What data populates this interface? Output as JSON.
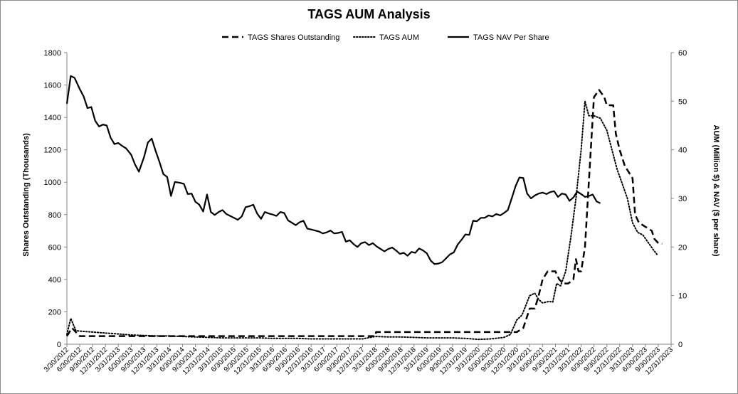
{
  "chart_data": {
    "type": "line",
    "title": "TAGS AUM Analysis",
    "ylabel": "Shares Outstanding (Thousands)",
    "y2label": "AUM (Million $) & NAV ($ per share)",
    "ylim": [
      0,
      1800
    ],
    "y2lim": [
      0,
      60
    ],
    "yticks": [
      0,
      200,
      400,
      600,
      800,
      1000,
      1200,
      1400,
      1600,
      1800
    ],
    "y2ticks": [
      0,
      10,
      20,
      30,
      40,
      50,
      60
    ],
    "grid": false,
    "legend_position": "top",
    "xticks": [
      "3/30/2012",
      "6/30/2012",
      "9/30/2012",
      "12/31/2012",
      "3/31/2013",
      "6/30/2013",
      "9/30/2013",
      "12/31/2013",
      "3/31/2014",
      "6/30/2014",
      "9/30/2014",
      "12/31/2014",
      "3/31/2015",
      "6/30/2015",
      "9/30/2015",
      "12/31/2015",
      "3/31/2016",
      "6/30/2016",
      "9/30/2016",
      "12/31/2016",
      "3/31/2017",
      "6/30/2017",
      "9/30/2017",
      "12/31/2017",
      "3/31/2018",
      "6/30/2018",
      "9/30/2018",
      "12/31/2018",
      "3/31/2019",
      "6/30/2019",
      "9/30/2019",
      "12/31/2019",
      "3/31/2020",
      "6/30/2020",
      "9/30/2020",
      "12/31/2020",
      "3/31/2021",
      "6/30/2021",
      "9/30/2021",
      "12/31/2021",
      "3/31/2022",
      "6/30/2022",
      "9/30/2022",
      "12/31/2022",
      "3/31/2023",
      "6/30/2023",
      "9/30/2023",
      "12/31/2023"
    ],
    "series": [
      {
        "name": "TAGS Shares Outstanding",
        "axis": "left",
        "style": "dashed",
        "points": [
          [
            0,
            50
          ],
          [
            0.4,
            100
          ],
          [
            0.7,
            75
          ],
          [
            1,
            50
          ],
          [
            2,
            50
          ],
          [
            3,
            50
          ],
          [
            4,
            50
          ],
          [
            5,
            50
          ],
          [
            6,
            50
          ],
          [
            7,
            50
          ],
          [
            8,
            50
          ],
          [
            9,
            50
          ],
          [
            10,
            50
          ],
          [
            11,
            50
          ],
          [
            12,
            50
          ],
          [
            13,
            50
          ],
          [
            14,
            50
          ],
          [
            15,
            50
          ],
          [
            16,
            50
          ],
          [
            17,
            50
          ],
          [
            18,
            50
          ],
          [
            19,
            50
          ],
          [
            20,
            50
          ],
          [
            21,
            50
          ],
          [
            22,
            50
          ],
          [
            23,
            50
          ],
          [
            24,
            50
          ],
          [
            24.05,
            75
          ],
          [
            25,
            75
          ],
          [
            26,
            75
          ],
          [
            27,
            75
          ],
          [
            28,
            75
          ],
          [
            29,
            75
          ],
          [
            30,
            75
          ],
          [
            31,
            75
          ],
          [
            32,
            75
          ],
          [
            33,
            75
          ],
          [
            34,
            75
          ],
          [
            35,
            75
          ],
          [
            35.5,
            100
          ],
          [
            36,
            220
          ],
          [
            36.4,
            220
          ],
          [
            36.7,
            300
          ],
          [
            37,
            400
          ],
          [
            37.4,
            450
          ],
          [
            38,
            450
          ],
          [
            38.3,
            400
          ],
          [
            38.6,
            375
          ],
          [
            39,
            375
          ],
          [
            39.4,
            400
          ],
          [
            39.6,
            525
          ],
          [
            39.8,
            450
          ],
          [
            40,
            450
          ],
          [
            40.3,
            600
          ],
          [
            40.6,
            1000
          ],
          [
            41,
            1525
          ],
          [
            41.4,
            1570
          ],
          [
            41.8,
            1525
          ],
          [
            42,
            1475
          ],
          [
            42.5,
            1475
          ],
          [
            42.7,
            1300
          ],
          [
            43,
            1200
          ],
          [
            43.4,
            1100
          ],
          [
            43.6,
            1075
          ],
          [
            44,
            1025
          ],
          [
            44.2,
            800
          ],
          [
            44.5,
            750
          ],
          [
            45,
            725
          ],
          [
            45.5,
            700
          ],
          [
            45.7,
            650
          ],
          [
            46,
            625
          ],
          [
            46.3,
            620
          ]
        ]
      },
      {
        "name": "TAGS AUM",
        "axis": "right",
        "style": "dotted",
        "points": [
          [
            0,
            2
          ],
          [
            0.3,
            5.3
          ],
          [
            0.7,
            2.8
          ],
          [
            1,
            2.7
          ],
          [
            2,
            2.5
          ],
          [
            3,
            2.3
          ],
          [
            4,
            2.1
          ],
          [
            5,
            1.9
          ],
          [
            6,
            1.8
          ],
          [
            7,
            1.7
          ],
          [
            8,
            1.7
          ],
          [
            9,
            1.6
          ],
          [
            10,
            1.5
          ],
          [
            11,
            1.4
          ],
          [
            12,
            1.3
          ],
          [
            13,
            1.3
          ],
          [
            14,
            1.3
          ],
          [
            15,
            1.3
          ],
          [
            16,
            1.2
          ],
          [
            17,
            1.2
          ],
          [
            18,
            1.2
          ],
          [
            19,
            1.1
          ],
          [
            20,
            1.1
          ],
          [
            21,
            1.1
          ],
          [
            22,
            1.1
          ],
          [
            23,
            1.1
          ],
          [
            24,
            1.6
          ],
          [
            25,
            1.5
          ],
          [
            26,
            1.5
          ],
          [
            27,
            1.4
          ],
          [
            28,
            1.3
          ],
          [
            29,
            1.3
          ],
          [
            30,
            1.3
          ],
          [
            31,
            1.2
          ],
          [
            32,
            1.0
          ],
          [
            33,
            1.1
          ],
          [
            34,
            1.4
          ],
          [
            34.5,
            2.0
          ],
          [
            35,
            5
          ],
          [
            35.4,
            6
          ],
          [
            36,
            10
          ],
          [
            36.4,
            10.5
          ],
          [
            36.7,
            9.2
          ],
          [
            37,
            8.5
          ],
          [
            37.5,
            8.8
          ],
          [
            37.8,
            8.7
          ],
          [
            38.1,
            12.5
          ],
          [
            38.4,
            12
          ],
          [
            38.8,
            15
          ],
          [
            39.2,
            22
          ],
          [
            39.6,
            30
          ],
          [
            40,
            40
          ],
          [
            40.3,
            50
          ],
          [
            40.6,
            47
          ],
          [
            41,
            47
          ],
          [
            41.5,
            46.5
          ],
          [
            42,
            44
          ],
          [
            42.4,
            40
          ],
          [
            42.8,
            36
          ],
          [
            43.2,
            33
          ],
          [
            43.6,
            30
          ],
          [
            44,
            25
          ],
          [
            44.4,
            23
          ],
          [
            44.8,
            22.5
          ],
          [
            45.2,
            21
          ],
          [
            45.6,
            19.5
          ],
          [
            45.9,
            18.5
          ]
        ]
      },
      {
        "name": "TAGS NAV Per Share",
        "axis": "right",
        "style": "solid",
        "points": [
          [
            0,
            49.5
          ],
          [
            0.3,
            55.2
          ],
          [
            0.6,
            54.8
          ],
          [
            1,
            52.5
          ],
          [
            1.3,
            51
          ],
          [
            1.6,
            48.6
          ],
          [
            1.9,
            48.8
          ],
          [
            2.2,
            46
          ],
          [
            2.5,
            44.8
          ],
          [
            2.8,
            45.2
          ],
          [
            3.1,
            45
          ],
          [
            3.4,
            42.5
          ],
          [
            3.7,
            41.2
          ],
          [
            4,
            41.4
          ],
          [
            4.3,
            40.8
          ],
          [
            4.6,
            40.3
          ],
          [
            5,
            39
          ],
          [
            5.3,
            37
          ],
          [
            5.6,
            35.5
          ],
          [
            6,
            38.5
          ],
          [
            6.3,
            41.5
          ],
          [
            6.6,
            42.3
          ],
          [
            6.9,
            39.8
          ],
          [
            7.2,
            37.5
          ],
          [
            7.5,
            35
          ],
          [
            7.8,
            34.4
          ],
          [
            8.1,
            30.5
          ],
          [
            8.4,
            33.4
          ],
          [
            8.8,
            33.2
          ],
          [
            9.1,
            33
          ],
          [
            9.4,
            30.9
          ],
          [
            9.7,
            31
          ],
          [
            10,
            29.3
          ],
          [
            10.3,
            28.7
          ],
          [
            10.6,
            27.3
          ],
          [
            10.9,
            30.8
          ],
          [
            11.2,
            27.2
          ],
          [
            11.5,
            26.6
          ],
          [
            11.8,
            27.2
          ],
          [
            12.1,
            27.6
          ],
          [
            12.4,
            26.8
          ],
          [
            12.7,
            26.4
          ],
          [
            13,
            26
          ],
          [
            13.3,
            25.6
          ],
          [
            13.6,
            26.3
          ],
          [
            13.9,
            28.2
          ],
          [
            14.2,
            28.4
          ],
          [
            14.5,
            28.7
          ],
          [
            14.8,
            26.9
          ],
          [
            15.1,
            25.8
          ],
          [
            15.4,
            27.2
          ],
          [
            15.7,
            26.9
          ],
          [
            16,
            26.7
          ],
          [
            16.3,
            26.4
          ],
          [
            16.6,
            27.2
          ],
          [
            16.9,
            27
          ],
          [
            17.2,
            25.5
          ],
          [
            17.5,
            25
          ],
          [
            17.8,
            24.5
          ],
          [
            18.1,
            25.1
          ],
          [
            18.4,
            25.4
          ],
          [
            18.7,
            23.8
          ],
          [
            19,
            23.6
          ],
          [
            19.3,
            23.4
          ],
          [
            19.6,
            23.2
          ],
          [
            19.9,
            22.8
          ],
          [
            20.2,
            23
          ],
          [
            20.5,
            23.4
          ],
          [
            20.8,
            22.8
          ],
          [
            21.1,
            22.9
          ],
          [
            21.4,
            23.1
          ],
          [
            21.7,
            21.1
          ],
          [
            22,
            21.4
          ],
          [
            22.3,
            20.6
          ],
          [
            22.6,
            20
          ],
          [
            22.9,
            20.8
          ],
          [
            23.2,
            21
          ],
          [
            23.5,
            20.4
          ],
          [
            23.8,
            20.8
          ],
          [
            24.1,
            20.1
          ],
          [
            24.4,
            19.6
          ],
          [
            24.7,
            19.1
          ],
          [
            25,
            19.6
          ],
          [
            25.3,
            19.9
          ],
          [
            25.6,
            19.3
          ],
          [
            25.9,
            18.6
          ],
          [
            26.2,
            18.8
          ],
          [
            26.5,
            18.2
          ],
          [
            26.8,
            19
          ],
          [
            27.1,
            18.8
          ],
          [
            27.4,
            19.7
          ],
          [
            27.7,
            19.3
          ],
          [
            28,
            18.7
          ],
          [
            28.3,
            17.2
          ],
          [
            28.6,
            16.5
          ],
          [
            28.9,
            16.6
          ],
          [
            29.2,
            16.9
          ],
          [
            29.5,
            17.7
          ],
          [
            29.8,
            18.5
          ],
          [
            30.1,
            18.9
          ],
          [
            30.4,
            20.5
          ],
          [
            30.7,
            21.5
          ],
          [
            31,
            22.6
          ],
          [
            31.3,
            22.5
          ],
          [
            31.6,
            25.4
          ],
          [
            31.9,
            25.3
          ],
          [
            32.2,
            26
          ],
          [
            32.5,
            26
          ],
          [
            32.8,
            26.5
          ],
          [
            33.1,
            26.3
          ],
          [
            33.4,
            26.8
          ],
          [
            33.7,
            26.5
          ],
          [
            34,
            27
          ],
          [
            34.3,
            27.6
          ],
          [
            34.6,
            30
          ],
          [
            34.9,
            32.5
          ],
          [
            35.2,
            34.3
          ],
          [
            35.5,
            34.2
          ],
          [
            35.8,
            31
          ],
          [
            36.1,
            30
          ],
          [
            36.4,
            30.6
          ],
          [
            36.7,
            31
          ],
          [
            37,
            31.2
          ],
          [
            37.3,
            30.9
          ],
          [
            37.6,
            31.3
          ],
          [
            37.9,
            31.5
          ],
          [
            38.2,
            30.3
          ],
          [
            38.5,
            31
          ],
          [
            38.8,
            30.8
          ],
          [
            39.1,
            29.5
          ],
          [
            39.4,
            30.2
          ],
          [
            39.7,
            31.4
          ],
          [
            40,
            30.9
          ],
          [
            40.3,
            30.3
          ],
          [
            40.6,
            30.5
          ],
          [
            40.9,
            30.8
          ],
          [
            41.2,
            29.4
          ],
          [
            41.5,
            29
          ]
        ]
      }
    ]
  }
}
